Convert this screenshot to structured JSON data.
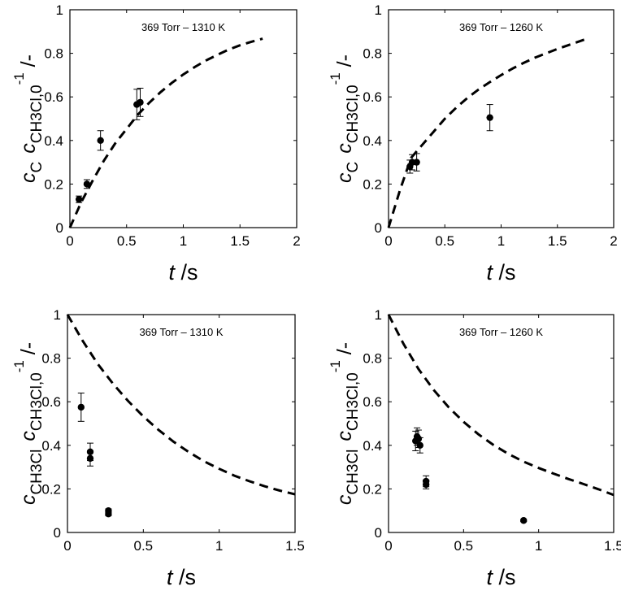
{
  "chart_data": [
    {
      "type": "scatter",
      "title": "369 Torr – 1310 K",
      "xlabel": {
        "var": "t",
        "unit": " /s"
      },
      "ylabel": {
        "c1": "c",
        "sub1": "C",
        "c2": "c",
        "sub2": "CH3Cl,0",
        "sup": "-1",
        "unit": " /-"
      },
      "xlim": [
        0,
        2
      ],
      "ylim": [
        0,
        1
      ],
      "xticks": [
        "0",
        "0.5",
        "1",
        "1.5",
        "2"
      ],
      "yticks": [
        "0",
        "0.2",
        "0.4",
        "0.6",
        "0.8",
        "1"
      ],
      "series": [
        {
          "kind": "measured",
          "x": [
            0.08,
            0.15,
            0.27,
            0.59,
            0.62
          ],
          "y": [
            0.13,
            0.2,
            0.4,
            0.565,
            0.575
          ],
          "err": [
            0.015,
            0.02,
            0.045,
            0.07,
            0.065
          ]
        },
        {
          "kind": "model",
          "x": [
            0,
            0.1,
            0.2,
            0.3,
            0.4,
            0.5,
            0.6,
            0.7,
            0.8,
            0.9,
            1.0,
            1.1,
            1.2,
            1.3,
            1.4,
            1.5,
            1.6,
            1.7
          ],
          "y": [
            0.0,
            0.117,
            0.215,
            0.307,
            0.387,
            0.453,
            0.519,
            0.573,
            0.622,
            0.665,
            0.703,
            0.737,
            0.767,
            0.793,
            0.817,
            0.837,
            0.853,
            0.867
          ]
        }
      ]
    },
    {
      "type": "scatter",
      "title": "369 Torr – 1260 K",
      "xlabel": {
        "var": "t",
        "unit": " /s"
      },
      "ylabel": {
        "c1": "c",
        "sub1": "C",
        "c2": "c",
        "sub2": "CH3Cl,0",
        "sup": "-1",
        "unit": " /-"
      },
      "xlim": [
        0,
        2
      ],
      "ylim": [
        0,
        1
      ],
      "xticks": [
        "0",
        "0.5",
        "1",
        "1.5",
        "2"
      ],
      "yticks": [
        "0",
        "0.2",
        "0.4",
        "0.6",
        "0.8",
        "1"
      ],
      "series": [
        {
          "kind": "measured",
          "x": [
            0.19,
            0.21,
            0.25,
            0.9
          ],
          "y": [
            0.28,
            0.3,
            0.3,
            0.505
          ],
          "err": [
            0.03,
            0.035,
            0.04,
            0.06
          ]
        },
        {
          "kind": "model",
          "x": [
            0,
            0.1,
            0.2,
            0.3,
            0.4,
            0.5,
            0.6,
            0.7,
            0.8,
            0.9,
            1.0,
            1.1,
            1.2,
            1.3,
            1.4,
            1.5,
            1.6,
            1.75
          ],
          "y": [
            0.0,
            0.17,
            0.32,
            0.38,
            0.44,
            0.5,
            0.55,
            0.595,
            0.634,
            0.668,
            0.7,
            0.73,
            0.756,
            0.78,
            0.8,
            0.82,
            0.838,
            0.865
          ]
        }
      ]
    },
    {
      "type": "scatter",
      "title": "369 Torr – 1310 K",
      "xlabel": {
        "var": "t",
        "unit": " /s"
      },
      "ylabel": {
        "c1": "c",
        "sub1": "CH3Cl",
        "c2": "c",
        "sub2": "CH3Cl,0",
        "sup": "-1",
        "unit": " /-"
      },
      "xlim": [
        0,
        1.5
      ],
      "ylim": [
        0,
        1
      ],
      "xticks": [
        "0",
        "0.5",
        "1",
        "1.5"
      ],
      "yticks": [
        "0",
        "0.2",
        "0.4",
        "0.6",
        "0.8",
        "1"
      ],
      "series": [
        {
          "kind": "measured",
          "x": [
            0.09,
            0.15,
            0.15,
            0.27,
            0.27
          ],
          "y": [
            0.575,
            0.37,
            0.34,
            0.1,
            0.085
          ],
          "err": [
            0.065,
            0.04,
            0.035,
            0.008,
            0.008
          ]
        },
        {
          "kind": "model",
          "x": [
            0,
            0.1,
            0.2,
            0.3,
            0.4,
            0.5,
            0.6,
            0.7,
            0.8,
            0.9,
            1.0,
            1.1,
            1.2,
            1.3,
            1.4,
            1.5
          ],
          "y": [
            1.0,
            0.88,
            0.773,
            0.683,
            0.603,
            0.533,
            0.471,
            0.416,
            0.369,
            0.327,
            0.292,
            0.261,
            0.235,
            0.212,
            0.192,
            0.175
          ]
        }
      ]
    },
    {
      "type": "scatter",
      "title": "369 Torr – 1260 K",
      "xlabel": {
        "var": "t",
        "unit": " /s"
      },
      "ylabel": {
        "c1": "c",
        "sub1": "CH3Cl",
        "c2": "c",
        "sub2": "CH3Cl,0",
        "sup": "-1",
        "unit": " /-"
      },
      "xlim": [
        0,
        1.5
      ],
      "ylim": [
        0,
        1
      ],
      "xticks": [
        "0",
        "0.5",
        "1",
        "1.5"
      ],
      "yticks": [
        "0",
        "0.2",
        "0.4",
        "0.6",
        "0.8",
        "1"
      ],
      "series": [
        {
          "kind": "measured",
          "x": [
            0.18,
            0.19,
            0.2,
            0.21,
            0.25,
            0.25,
            0.9
          ],
          "y": [
            0.42,
            0.44,
            0.43,
            0.4,
            0.235,
            0.22,
            0.055
          ],
          "err": [
            0.045,
            0.04,
            0.04,
            0.035,
            0.025,
            0.02,
            0.005
          ]
        },
        {
          "kind": "model",
          "x": [
            0,
            0.1,
            0.2,
            0.3,
            0.4,
            0.5,
            0.6,
            0.7,
            0.8,
            0.9,
            1.0,
            1.1,
            1.2,
            1.3,
            1.4,
            1.5
          ],
          "y": [
            1.0,
            0.865,
            0.75,
            0.655,
            0.575,
            0.508,
            0.45,
            0.401,
            0.36,
            0.325,
            0.296,
            0.27,
            0.245,
            0.222,
            0.198,
            0.172
          ]
        }
      ]
    }
  ]
}
